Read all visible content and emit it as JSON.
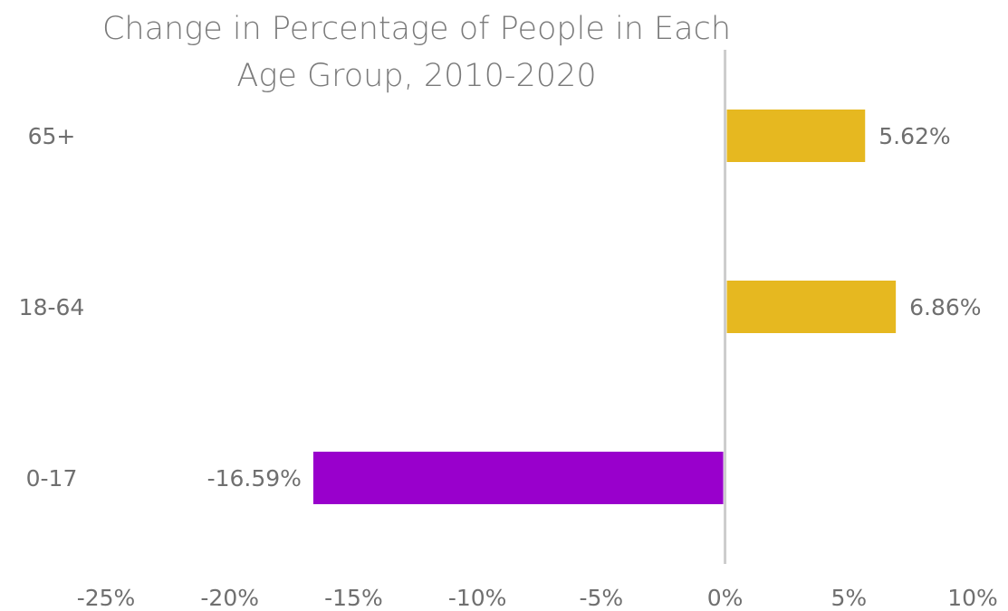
{
  "chart_data": {
    "type": "bar",
    "orientation": "horizontal",
    "title": "Change in Percentage of People in Each Age Group, 2010-2020",
    "categories": [
      "65+",
      "18-64",
      "0-17"
    ],
    "values": [
      5.62,
      6.86,
      -16.59
    ],
    "value_labels": [
      "5.62%",
      "6.86%",
      "-16.59%"
    ],
    "xlim": [
      -25,
      10
    ],
    "xticks": [
      -25,
      -20,
      -15,
      -10,
      -5,
      0,
      5,
      10
    ],
    "xtick_labels": [
      "-25%",
      "-20%",
      "-15%",
      "-10%",
      "-5%",
      "0%",
      "5%",
      "10%"
    ],
    "colors": {
      "positive": "#e6b820",
      "negative": "#9900cc",
      "axis": "#cccccc",
      "text": "#6f6f6f"
    },
    "grid": false,
    "legend": "none"
  }
}
